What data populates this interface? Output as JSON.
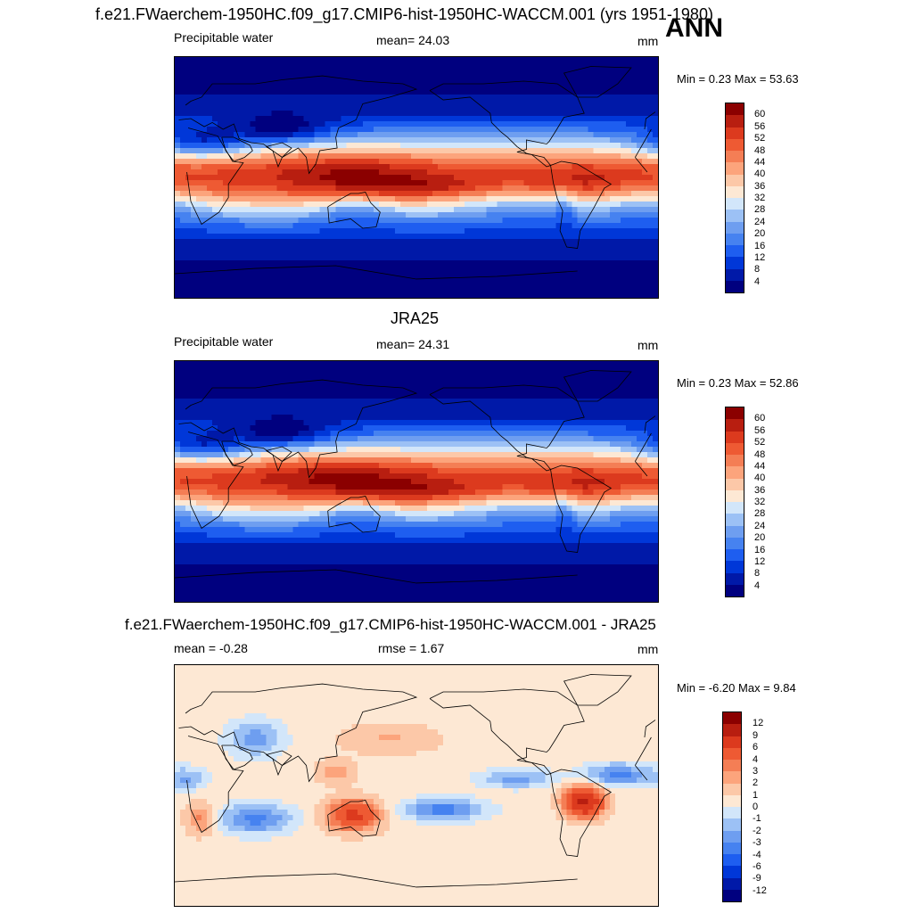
{
  "main_title": "f.e21.FWaerchem-1950HC.f09_g17.CMIP6-hist-1950HC-WACCM.001 (yrs 1951-1980)",
  "season": "ANN",
  "panels": [
    {
      "title": "",
      "left": "Precipitable water",
      "center": "mean=  24.03",
      "units": "mm",
      "minmax": "Min =   0.23 Max =  53.63"
    },
    {
      "title": "JRA25",
      "left": "Precipitable water",
      "center": "mean=  24.31",
      "units": "mm",
      "minmax": "Min =   0.23 Max =  52.86"
    },
    {
      "title": "f.e21.FWaerchem-1950HC.f09_g17.CMIP6-hist-1950HC-WACCM.001 - JRA25",
      "left": "mean =  -0.28",
      "center": "rmse =   1.67",
      "units": "mm",
      "minmax": "Min =  -6.20 Max =   9.84"
    }
  ],
  "chart_data": [
    {
      "type": "heatmap",
      "title": "Precipitable water",
      "units": "mm",
      "mean": 24.03,
      "min": 0.23,
      "max": 53.63,
      "levels": [
        4,
        8,
        12,
        16,
        20,
        24,
        28,
        32,
        36,
        40,
        44,
        48,
        52,
        56,
        60
      ],
      "colors": [
        "#00007f",
        "#0019a8",
        "#0037d8",
        "#1e5ef0",
        "#4682f0",
        "#6e9ef0",
        "#9cc1f5",
        "#d2e6fa",
        "#fde8d4",
        "#fcc8a8",
        "#fca47c",
        "#f47e55",
        "#ee5a33",
        "#dc3a1e",
        "#b81e10",
        "#8b0000"
      ]
    },
    {
      "type": "heatmap",
      "title": "JRA25",
      "units": "mm",
      "mean": 24.31,
      "min": 0.23,
      "max": 52.86,
      "levels": [
        4,
        8,
        12,
        16,
        20,
        24,
        28,
        32,
        36,
        40,
        44,
        48,
        52,
        56,
        60
      ],
      "colors": [
        "#00007f",
        "#0019a8",
        "#0037d8",
        "#1e5ef0",
        "#4682f0",
        "#6e9ef0",
        "#9cc1f5",
        "#d2e6fa",
        "#fde8d4",
        "#fcc8a8",
        "#fca47c",
        "#f47e55",
        "#ee5a33",
        "#dc3a1e",
        "#b81e10",
        "#8b0000"
      ]
    },
    {
      "type": "heatmap",
      "title": "f.e21.FWaerchem-1950HC.f09_g17.CMIP6-hist-1950HC-WACCM.001 - JRA25",
      "units": "mm",
      "mean": -0.28,
      "rmse": 1.67,
      "min": -6.2,
      "max": 9.84,
      "levels": [
        -12,
        -9,
        -6,
        -4,
        -3,
        -2,
        -1,
        0,
        1,
        2,
        3,
        4,
        6,
        9,
        12
      ],
      "colors": [
        "#00007f",
        "#0019a8",
        "#0037d8",
        "#1e5ef0",
        "#4682f0",
        "#6e9ef0",
        "#9cc1f5",
        "#d2e6fa",
        "#fde8d4",
        "#fcc8a8",
        "#fca47c",
        "#f47e55",
        "#ee5a33",
        "#dc3a1e",
        "#b81e10",
        "#8b0000"
      ]
    }
  ]
}
